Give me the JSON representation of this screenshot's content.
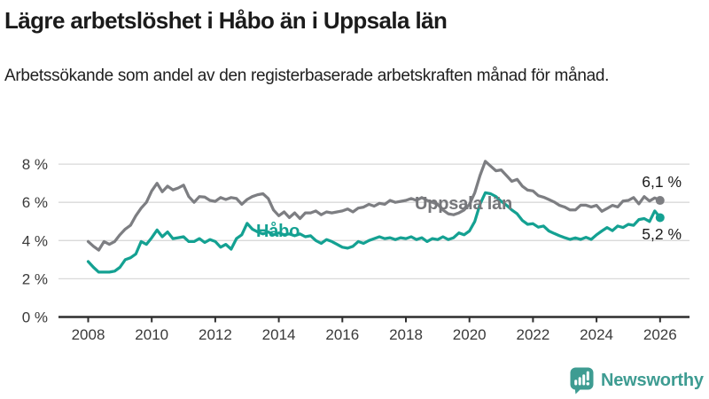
{
  "header": {
    "title": "Lägre arbetslöshet i Håbo än i Uppsala län",
    "subtitle": "Arbetssökande som andel av den registerbaserade arbetskraften månad för månad."
  },
  "chart_data": {
    "type": "line",
    "title": "Lägre arbetslöshet i Håbo än i Uppsala län",
    "xlabel": "",
    "ylabel": "",
    "y_unit": "%",
    "grid": "horizontal",
    "legend_position": "inline-labels",
    "xlim": [
      2008,
      2026.2
    ],
    "ylim": [
      0,
      8.8
    ],
    "x_start_year": 2008,
    "x_step_months": 2,
    "x_ticks": [
      {
        "value": 2008,
        "label": "2008"
      },
      {
        "value": 2010,
        "label": "2010"
      },
      {
        "value": 2012,
        "label": "2012"
      },
      {
        "value": 2014,
        "label": "2014"
      },
      {
        "value": 2016,
        "label": "2016"
      },
      {
        "value": 2018,
        "label": "2018"
      },
      {
        "value": 2020,
        "label": "2020"
      },
      {
        "value": 2022,
        "label": "2022"
      },
      {
        "value": 2024,
        "label": "2024"
      },
      {
        "value": 2026,
        "label": "2026"
      }
    ],
    "y_ticks": [
      {
        "value": 8,
        "label": "8 %"
      },
      {
        "value": 6,
        "label": "6 %"
      },
      {
        "value": 4,
        "label": "4 %"
      },
      {
        "value": 2,
        "label": "2 %"
      },
      {
        "value": 0,
        "label": "0 %"
      }
    ],
    "series": [
      {
        "name": "Uppsala län",
        "color": "#7d7e82",
        "label_color": "#76777b",
        "end_value_label": "6,1 %",
        "end_value": 6.1,
        "values": [
          3.95,
          3.7,
          3.5,
          3.95,
          3.8,
          3.95,
          4.3,
          4.6,
          4.8,
          5.3,
          5.7,
          6.0,
          6.6,
          7.0,
          6.55,
          6.85,
          6.65,
          6.75,
          6.9,
          6.3,
          6.0,
          6.3,
          6.28,
          6.1,
          6.05,
          6.25,
          6.15,
          6.25,
          6.2,
          5.9,
          6.15,
          6.3,
          6.4,
          6.45,
          6.2,
          5.6,
          5.3,
          5.5,
          5.2,
          5.45,
          5.15,
          5.45,
          5.45,
          5.55,
          5.35,
          5.5,
          5.45,
          5.5,
          5.55,
          5.65,
          5.5,
          5.7,
          5.75,
          5.9,
          5.8,
          5.95,
          5.9,
          6.1,
          6.0,
          6.05,
          6.1,
          6.2,
          6.1,
          6.25,
          6.1,
          6.0,
          5.9,
          5.6,
          5.4,
          5.35,
          5.45,
          5.6,
          5.9,
          6.5,
          7.4,
          8.15,
          7.9,
          7.65,
          7.7,
          7.4,
          7.1,
          7.2,
          6.84,
          6.64,
          6.6,
          6.35,
          6.27,
          6.15,
          6.02,
          5.84,
          5.75,
          5.6,
          5.6,
          5.85,
          5.85,
          5.76,
          5.84,
          5.53,
          5.68,
          5.84,
          5.76,
          6.07,
          6.1,
          6.25,
          5.92,
          6.3,
          6.07,
          6.23,
          6.1
        ]
      },
      {
        "name": "Håbo",
        "color": "#14a192",
        "label_color": "#14a192",
        "end_value_label": "5,2 %",
        "end_value": 5.2,
        "values": [
          2.9,
          2.6,
          2.35,
          2.35,
          2.35,
          2.4,
          2.6,
          3.0,
          3.1,
          3.3,
          3.95,
          3.8,
          4.15,
          4.55,
          4.2,
          4.45,
          4.1,
          4.15,
          4.2,
          3.95,
          3.95,
          4.1,
          3.9,
          4.05,
          3.95,
          3.65,
          3.8,
          3.55,
          4.1,
          4.3,
          4.9,
          4.6,
          4.45,
          4.35,
          4.45,
          4.3,
          4.4,
          4.3,
          4.35,
          4.25,
          4.35,
          4.2,
          4.25,
          4.0,
          3.85,
          4.05,
          3.95,
          3.8,
          3.65,
          3.6,
          3.7,
          3.95,
          3.85,
          4.0,
          4.1,
          4.2,
          4.1,
          4.15,
          4.05,
          4.15,
          4.1,
          4.2,
          4.05,
          4.15,
          3.95,
          4.1,
          4.05,
          4.2,
          4.05,
          4.15,
          4.4,
          4.3,
          4.5,
          5.0,
          5.9,
          6.5,
          6.45,
          6.3,
          6.05,
          5.85,
          5.6,
          5.4,
          5.05,
          4.85,
          4.88,
          4.7,
          4.76,
          4.5,
          4.37,
          4.25,
          4.15,
          4.06,
          4.14,
          4.06,
          4.17,
          4.06,
          4.3,
          4.5,
          4.68,
          4.52,
          4.76,
          4.68,
          4.85,
          4.8,
          5.1,
          5.15,
          5.0,
          5.55,
          5.2
        ]
      }
    ]
  },
  "branding": {
    "name": "Newsworthy",
    "color": "#3e9c92",
    "icon": "newsworthy-bar-chart-speech-bubble-icon"
  }
}
